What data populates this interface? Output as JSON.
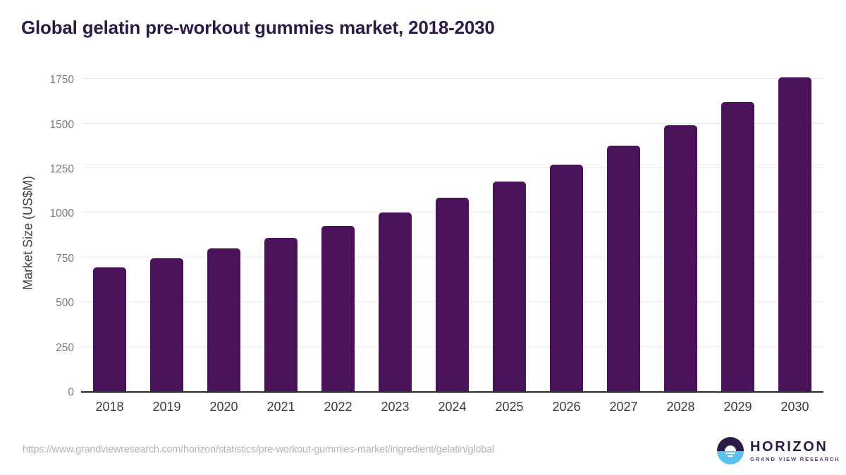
{
  "header": {
    "title": "Global gelatin pre-workout gummies market, 2018-2030"
  },
  "chart_data": {
    "type": "bar",
    "title": "Global gelatin pre-workout gummies market, 2018-2030",
    "categories": [
      "2018",
      "2019",
      "2020",
      "2021",
      "2022",
      "2023",
      "2024",
      "2025",
      "2026",
      "2027",
      "2028",
      "2029",
      "2030"
    ],
    "values": [
      695,
      745,
      800,
      860,
      925,
      1000,
      1085,
      1175,
      1270,
      1375,
      1490,
      1620,
      1760
    ],
    "xlabel": "",
    "ylabel": "Market Size (US$M)",
    "ylim": [
      0,
      1790
    ],
    "yticks": [
      0,
      250,
      500,
      750,
      1000,
      1250,
      1500,
      1750
    ],
    "grid": "horizontal",
    "legend": "none",
    "bar_color": "#4a1259"
  },
  "footer": {
    "source_url": "https://www.grandviewresearch.com/horizon/statistics/pre-workout-gummies-market/ingredient/gelatin/global",
    "logo": {
      "name": "HORIZON",
      "subtitle": "GRAND VIEW RESEARCH"
    }
  },
  "colors": {
    "title_text": "#2e1a47",
    "bar_fill": "#4a1259",
    "gridline": "#e9e9e9",
    "axis_line": "#2b2b2b",
    "y_tick_text": "#7a7a7a",
    "x_tick_text": "#3d3d3d",
    "url_text": "#b4b4b4",
    "logo_purple": "#2d1b47",
    "logo_blue": "#5bc2ef",
    "logo_subtitle_text": "#54406e"
  }
}
